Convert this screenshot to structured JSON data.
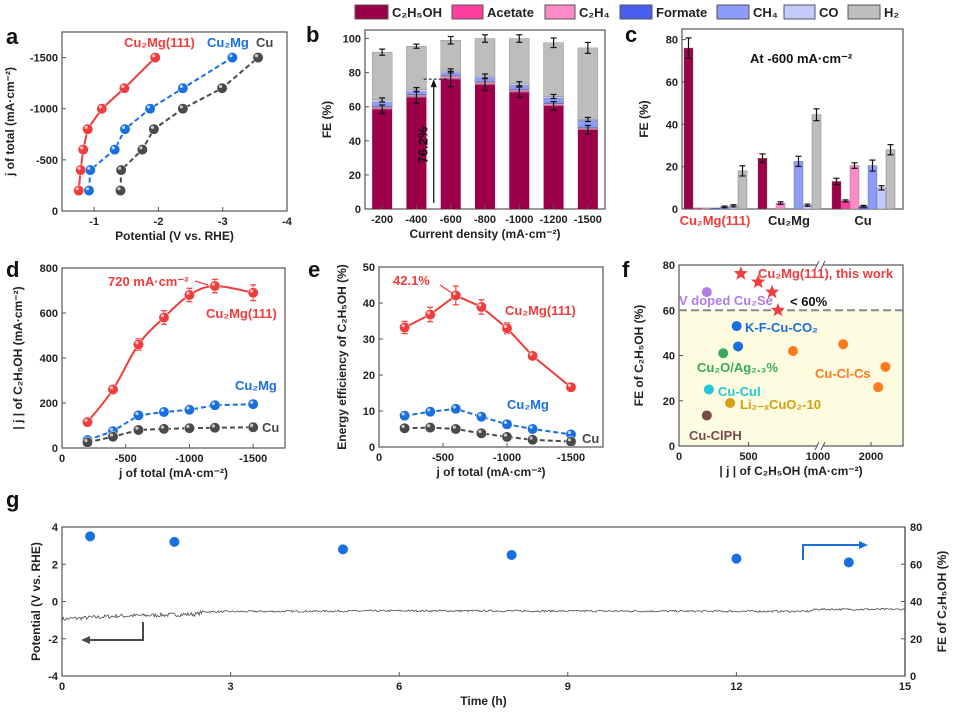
{
  "legend": {
    "items": [
      {
        "label": "C₂H₅OH",
        "color": "#9b0048"
      },
      {
        "label": "Acetate",
        "color": "#ff3ea0"
      },
      {
        "label": "C₂H₄",
        "color": "#ff8cc8"
      },
      {
        "label": "Formate",
        "color": "#4a5ef0"
      },
      {
        "label": "CH₄",
        "color": "#8c9cf8"
      },
      {
        "label": "CO",
        "color": "#c4cbfc"
      },
      {
        "label": "H₂",
        "color": "#bdbdbd"
      }
    ]
  },
  "chart_data": [
    {
      "panel": "a",
      "type": "line",
      "xlabel": "Potential (V vs. RHE)",
      "ylabel": "j of total (mA·cm⁻²)",
      "xlim": [
        -0.5,
        -4
      ],
      "ylim": [
        0,
        -1750
      ],
      "xticks": [
        -1,
        -2,
        -3,
        -4
      ],
      "yticks": [
        0,
        -500,
        -1000,
        -1500
      ],
      "series": [
        {
          "name": "Cu₂Mg(111)",
          "color": "#f03c3c",
          "dashed": false,
          "points": [
            [
              -0.76,
              -200
            ],
            [
              -0.79,
              -400
            ],
            [
              -0.83,
              -600
            ],
            [
              -0.9,
              -800
            ],
            [
              -1.12,
              -1000
            ],
            [
              -1.47,
              -1200
            ],
            [
              -1.95,
              -1500
            ]
          ]
        },
        {
          "name": "Cu₂Mg",
          "color": "#1a6fe0",
          "dashed": true,
          "points": [
            [
              -0.92,
              -200
            ],
            [
              -0.94,
              -400
            ],
            [
              -1.32,
              -600
            ],
            [
              -1.48,
              -800
            ],
            [
              -1.87,
              -1000
            ],
            [
              -2.38,
              -1200
            ],
            [
              -3.15,
              -1500
            ]
          ]
        },
        {
          "name": "Cu",
          "color": "#4a4a4a",
          "dashed": true,
          "points": [
            [
              -1.41,
              -200
            ],
            [
              -1.42,
              -400
            ],
            [
              -1.75,
              -600
            ],
            [
              -1.93,
              -800
            ],
            [
              -2.38,
              -1000
            ],
            [
              -2.99,
              -1200
            ],
            [
              -3.55,
              -1500
            ]
          ]
        }
      ]
    },
    {
      "panel": "b",
      "type": "bar",
      "xlabel": "Current density (mA·cm⁻²)",
      "ylabel": "FE (%)",
      "ylim": [
        0,
        105
      ],
      "yticks": [
        0,
        20,
        40,
        60,
        80,
        100
      ],
      "categories": [
        "-200",
        "-400",
        "-600",
        "-800",
        "-1000",
        "-1200",
        "-1500"
      ],
      "series": [
        {
          "name": "C₂H₅OH",
          "values": [
            58.5,
            65.5,
            76.2,
            73,
            68.5,
            60.5,
            46.5
          ]
        },
        {
          "name": "Acetate",
          "values": [
            0.5,
            0.5,
            0.6,
            0.5,
            0.5,
            0.5,
            0.5
          ]
        },
        {
          "name": "C₂H₄",
          "values": [
            0.8,
            0.8,
            1.0,
            0.8,
            0.8,
            0.8,
            0.5
          ]
        },
        {
          "name": "Formate",
          "values": [
            0.5,
            0.5,
            0.5,
            0.5,
            0.5,
            0.5,
            0.5
          ]
        },
        {
          "name": "CH₄",
          "values": [
            2.2,
            1.5,
            1.6,
            2.2,
            2.2,
            2.7,
            4.0
          ]
        },
        {
          "name": "CO",
          "values": [
            1.5,
            1.2,
            1.1,
            1.0,
            1.0,
            1.0,
            0.5
          ]
        },
        {
          "name": "H₂",
          "values": [
            28.0,
            25.5,
            18.0,
            22.0,
            26.5,
            31.5,
            42.0
          ]
        }
      ],
      "c2h5oh_error": [
        2.5,
        3.5,
        4.5,
        3.5,
        3,
        2.5,
        2.5
      ],
      "total_error": [
        1.8,
        1.2,
        2.2,
        2.2,
        2.2,
        2.8,
        3.2
      ],
      "annotation": "76.2%"
    },
    {
      "panel": "c",
      "type": "bar",
      "title": "At -600 mA·cm⁻²",
      "ylabel": "FE (%)",
      "ylim": [
        0,
        85
      ],
      "yticks": [
        0,
        20,
        40,
        60,
        80
      ],
      "categories": [
        "Cu₂Mg(111)",
        "Cu₂Mg",
        "Cu"
      ],
      "series_names": [
        "C₂H₅OH",
        "Acetate",
        "C₂H₄",
        "Formate",
        "CH₄",
        "CO",
        "H₂"
      ],
      "values": [
        [
          76,
          0.5,
          0.5,
          0.5,
          1,
          1.5,
          18
        ],
        [
          24,
          0,
          2.8,
          0,
          22.5,
          1.8,
          44.5
        ],
        [
          13,
          3.8,
          20.5,
          1.3,
          20.5,
          10,
          28
        ]
      ],
      "errors": [
        [
          4.8,
          0,
          0,
          0,
          0.4,
          0.5,
          2.4
        ],
        [
          2,
          0,
          0.6,
          0,
          2.4,
          0.5,
          2.8
        ],
        [
          1.5,
          0.5,
          1.3,
          0.4,
          2.6,
          1.0,
          2.4
        ]
      ]
    },
    {
      "panel": "d",
      "type": "line",
      "xlabel": "j of total (mA·cm⁻²)",
      "ylabel": "| j | of C₂H₅OH (mA·cm⁻²)",
      "xlim": [
        0,
        -1750
      ],
      "ylim": [
        0,
        800
      ],
      "xticks": [
        0,
        -500,
        -1000,
        -1500
      ],
      "yticks": [
        0,
        200,
        400,
        600,
        800
      ],
      "annotation": "720 mA·cm⁻²",
      "series": [
        {
          "name": "Cu₂Mg(111)",
          "color": "#f03c3c",
          "dashed": false,
          "smooth": true,
          "points": [
            [
              -200,
              115
            ],
            [
              -400,
              260
            ],
            [
              -600,
              460
            ],
            [
              -800,
              580
            ],
            [
              -1000,
              680
            ],
            [
              -1200,
              720
            ],
            [
              -1500,
              690
            ]
          ],
          "errors": [
            8,
            10,
            25,
            30,
            30,
            30,
            35
          ]
        },
        {
          "name": "Cu₂Mg",
          "color": "#1a6fe0",
          "dashed": true,
          "points": [
            [
              -200,
              35
            ],
            [
              -400,
              75
            ],
            [
              -600,
              145
            ],
            [
              -800,
              160
            ],
            [
              -1000,
              170
            ],
            [
              -1200,
              190
            ],
            [
              -1500,
              195
            ]
          ],
          "errors": [
            5,
            6,
            8,
            8,
            8,
            15,
            8
          ]
        },
        {
          "name": "Cu",
          "color": "#4a4a4a",
          "dashed": true,
          "points": [
            [
              -200,
              25
            ],
            [
              -400,
              50
            ],
            [
              -600,
              80
            ],
            [
              -800,
              85
            ],
            [
              -1000,
              88
            ],
            [
              -1200,
              90
            ],
            [
              -1500,
              92
            ]
          ],
          "errors": [
            3,
            4,
            4,
            4,
            4,
            4,
            4
          ]
        }
      ]
    },
    {
      "panel": "e",
      "type": "line",
      "xlabel": "j of total (mA·cm⁻²)",
      "ylabel": "Energy efficiency of C₂H₅OH (%)",
      "xlim": [
        0,
        -1750
      ],
      "ylim": [
        0,
        50
      ],
      "xticks": [
        0,
        -500,
        -1000,
        -1500
      ],
      "yticks": [
        0,
        10,
        20,
        30,
        40,
        50
      ],
      "annotation": "42.1%",
      "series": [
        {
          "name": "Cu₂Mg(111)",
          "color": "#f03c3c",
          "dashed": false,
          "points": [
            [
              -200,
              33.2
            ],
            [
              -400,
              36.8
            ],
            [
              -600,
              42.1
            ],
            [
              -800,
              38.9
            ],
            [
              -1000,
              33
            ],
            [
              -1200,
              25.3
            ],
            [
              -1500,
              16.6
            ]
          ],
          "errors": [
            1.7,
            2,
            2.6,
            2,
            1.5,
            0.6,
            0.5
          ]
        },
        {
          "name": "Cu₂Mg",
          "color": "#1a6fe0",
          "dashed": true,
          "points": [
            [
              -200,
              8.7
            ],
            [
              -400,
              9.8
            ],
            [
              -600,
              10.6
            ],
            [
              -800,
              8.4
            ],
            [
              -1000,
              6.3
            ],
            [
              -1200,
              5
            ],
            [
              -1500,
              3.5
            ]
          ],
          "errors": [
            0.5,
            0.5,
            0.6,
            0.5,
            0.5,
            0.5,
            0.5
          ]
        },
        {
          "name": "Cu",
          "color": "#4a4a4a",
          "dashed": true,
          "points": [
            [
              -200,
              5.2
            ],
            [
              -400,
              5.4
            ],
            [
              -600,
              5
            ],
            [
              -800,
              3.8
            ],
            [
              -1000,
              2.8
            ],
            [
              -1200,
              2
            ],
            [
              -1500,
              1.5
            ]
          ],
          "errors": [
            0.4,
            0.4,
            0.4,
            0.4,
            0.4,
            0.4,
            0.4
          ]
        }
      ]
    },
    {
      "panel": "f",
      "type": "scatter",
      "xlabel": "| j | of C₂H₅OH (mA·cm⁻²)",
      "ylabel": "FE of C₂H₅OH (%)",
      "ylim": [
        0,
        80
      ],
      "yticks": [
        0,
        20,
        40,
        60,
        80
      ],
      "xticks": [
        0,
        500,
        1000,
        2000
      ],
      "x_axis_break": 1000,
      "threshold": 60,
      "threshold_label": "< 60%",
      "groups": [
        {
          "name": "Cu₂Mg(111), this work",
          "color": "#f03c3c",
          "marker": "star",
          "points": [
            [
              445,
              76.2
            ],
            [
              570,
              72.5
            ],
            [
              670,
              68
            ],
            [
              712,
              60
            ]
          ]
        },
        {
          "name": "V doped Cu₂Se",
          "color": "#b27ce6",
          "marker": "circle",
          "points": [
            [
              200,
              68
            ]
          ]
        },
        {
          "name": "K-F-Cu-CO₂",
          "color": "#1a6fe0",
          "marker": "circle",
          "points": [
            [
              415,
              53
            ],
            [
              425,
              44
            ]
          ]
        },
        {
          "name": "Cu₂O/Ag₂.₃%",
          "color": "#3aaa5e",
          "marker": "circle",
          "points": [
            [
              318,
              41
            ]
          ]
        },
        {
          "name": "Cu-CuI",
          "color": "#22c8d8",
          "marker": "circle",
          "points": [
            [
              215,
              25
            ]
          ]
        },
        {
          "name": "Li₂₋ₓCuO₂-10",
          "color": "#d4a010",
          "marker": "circle",
          "points": [
            [
              368,
              19
            ]
          ]
        },
        {
          "name": "Cu-ClPH",
          "color": "#7a4a4a",
          "marker": "circle",
          "points": [
            [
              200,
              13.5
            ]
          ]
        },
        {
          "name": "Cu-Cl-Cs",
          "color": "#ff7a1a",
          "marker": "circle",
          "points": [
            [
              820,
              42
            ],
            [
              1420,
              45
            ],
            [
              2150,
              26
            ],
            [
              2300,
              35
            ]
          ]
        }
      ]
    },
    {
      "panel": "g",
      "type": "line",
      "xlabel": "Time (h)",
      "ylabel": "Potential (V vs. RHE)",
      "y2label": "FE of C₂H₅OH (%)",
      "xlim": [
        0,
        15
      ],
      "ylim": [
        -4,
        4
      ],
      "y2lim": [
        0,
        80
      ],
      "xticks": [
        0,
        3,
        6,
        9,
        12,
        15
      ],
      "yticks": [
        -4,
        -2,
        0,
        2,
        4
      ],
      "y2ticks": [
        0,
        20,
        40,
        60,
        80
      ],
      "potential_trace": [
        [
          0,
          -0.95
        ],
        [
          1,
          -0.78
        ],
        [
          2.4,
          -0.68
        ],
        [
          2.5,
          -0.55
        ],
        [
          6,
          -0.5
        ],
        [
          13.3,
          -0.53
        ],
        [
          13.4,
          -0.42
        ],
        [
          15,
          -0.42
        ]
      ],
      "fe_points": [
        [
          0.5,
          75
        ],
        [
          2,
          72
        ],
        [
          5,
          68
        ],
        [
          8,
          65
        ],
        [
          12,
          63
        ],
        [
          14,
          61
        ]
      ],
      "potential_color": "#4a4a4a",
      "fe_color": "#1a6fe0"
    }
  ]
}
